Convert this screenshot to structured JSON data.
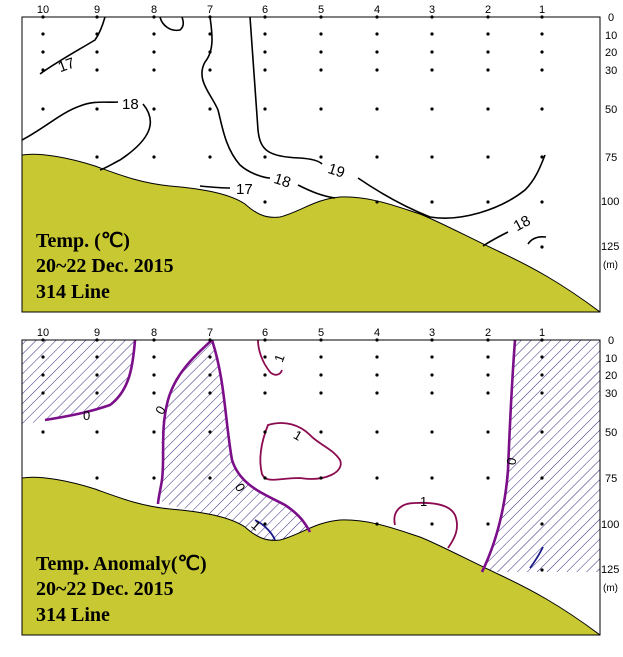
{
  "colors": {
    "seabed": "#c8c832",
    "seabed_stroke": "#000000",
    "contour_temp": "#000000",
    "contour_zero": "#7b0f8a",
    "contour_pos": "#8b0a50",
    "contour_neg": "#1a1a8a",
    "hatch": "#3a2a80"
  },
  "stations": [
    "10",
    "9",
    "8",
    "7",
    "6",
    "5",
    "4",
    "3",
    "2",
    "1"
  ],
  "depths": [
    "0",
    "10",
    "20",
    "30",
    "50",
    "75",
    "100",
    "125"
  ],
  "depth_unit": "(m)",
  "panels": [
    {
      "id": "temperature",
      "title_line1": "Temp. (℃)",
      "title_line2": "20~22  Dec. 2015",
      "title_line3": "314 Line",
      "contour_labels": [
        "17",
        "18",
        "17",
        "18",
        "19",
        "18"
      ]
    },
    {
      "id": "anomaly",
      "title_line1": "Temp. Anomaly(℃)",
      "title_line2": "20~22  Dec. 2015",
      "title_line3": "314 Line",
      "contour_labels": [
        "0",
        "0",
        "0",
        "1",
        "1",
        "1",
        "0",
        "1"
      ]
    }
  ]
}
